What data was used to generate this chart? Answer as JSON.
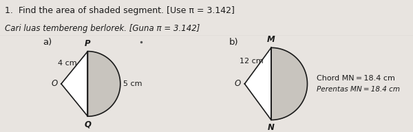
{
  "title_line1": "1.  Find the area of shaded segment. [Use π = 3.142]",
  "title_line2": "Cari luas tembereng berlorek. [Guna π = 3.142]",
  "fig_bg": "#e8e4e0",
  "label_a": "a)",
  "label_b": "b)",
  "diagram_a": {
    "O_label": "O",
    "P_label": "P",
    "Q_label": "Q",
    "radius_label": "4 cm",
    "side_label": "5 cm"
  },
  "diagram_b": {
    "O_label": "O",
    "M_label": "M",
    "N_label": "N",
    "radius_label": "12 cm",
    "chord_label": "Chord MN = 18.4 cm",
    "chord_label_malay": "Perentas MN = 18.4 cm"
  },
  "line_color": "#1a1a1a",
  "text_color": "#1a1a1a",
  "shading_color": "#c8c4be",
  "bg_color": "#eceae6",
  "panel_bg": "#eceae6",
  "divider_color": "#888880"
}
